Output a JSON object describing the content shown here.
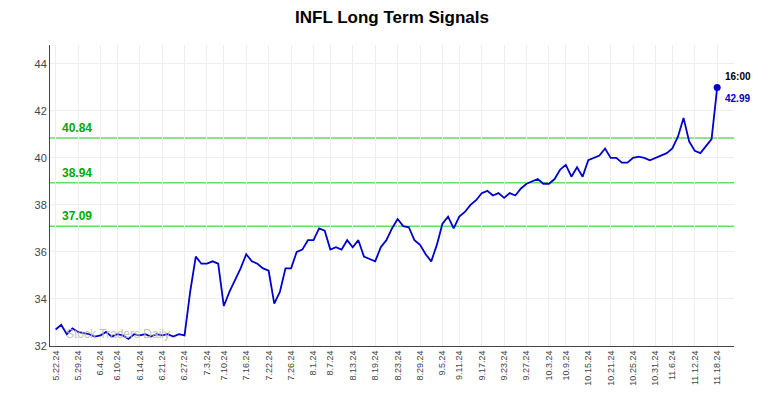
{
  "chart_data": {
    "type": "line",
    "title": "INFL Long Term Signals",
    "categories": [
      "5.22.24",
      null,
      null,
      null,
      "5.29.24",
      null,
      null,
      null,
      "6.4.24",
      null,
      null,
      "6.10.24",
      null,
      null,
      null,
      "6.14.24",
      null,
      null,
      null,
      "6.21.24",
      null,
      null,
      null,
      "6.27.24",
      null,
      null,
      null,
      "7.3.24",
      null,
      null,
      "7.10.24",
      null,
      null,
      null,
      "7.16.24",
      null,
      null,
      null,
      "7.22.24",
      null,
      null,
      null,
      "7.26.24",
      null,
      null,
      null,
      "8.1.24",
      null,
      null,
      "8.7.24",
      null,
      null,
      null,
      "8.13.24",
      null,
      null,
      null,
      "8.19.24",
      null,
      null,
      null,
      "8.23.24",
      null,
      null,
      null,
      "8.29.24",
      null,
      null,
      null,
      "9.5.24",
      null,
      null,
      "9.11.24",
      null,
      null,
      null,
      "9.17.24",
      null,
      null,
      null,
      "9.23.24",
      null,
      null,
      null,
      "9.27.24",
      null,
      null,
      null,
      "10.3.24",
      null,
      null,
      "10.9.24",
      null,
      null,
      null,
      "10.15.24",
      null,
      null,
      null,
      "10.21.24",
      null,
      null,
      null,
      "10.25.24",
      null,
      null,
      null,
      "10.31.24",
      null,
      null,
      "11.6.24",
      null,
      null,
      null,
      "11.12.24",
      null,
      null,
      null,
      "11.18.24"
    ],
    "values": [
      32.7,
      32.9,
      32.5,
      32.75,
      32.6,
      32.55,
      32.5,
      32.4,
      32.45,
      32.6,
      32.4,
      32.5,
      32.45,
      32.3,
      32.5,
      32.45,
      32.5,
      32.4,
      32.5,
      32.45,
      32.5,
      32.4,
      32.5,
      32.45,
      34.3,
      35.8,
      35.5,
      35.5,
      35.6,
      35.5,
      33.7,
      34.3,
      34.8,
      35.3,
      35.9,
      35.6,
      35.5,
      35.3,
      35.2,
      33.8,
      34.3,
      35.3,
      35.3,
      36.0,
      36.1,
      36.5,
      36.5,
      37.0,
      36.9,
      36.1,
      36.2,
      36.1,
      36.5,
      36.2,
      36.5,
      35.8,
      35.7,
      35.6,
      36.2,
      36.5,
      37.0,
      37.4,
      37.1,
      37.05,
      36.5,
      36.3,
      35.9,
      35.6,
      36.3,
      37.2,
      37.5,
      37.0,
      37.5,
      37.7,
      38.0,
      38.2,
      38.5,
      38.6,
      38.4,
      38.5,
      38.3,
      38.5,
      38.4,
      38.7,
      38.9,
      39.0,
      39.1,
      38.9,
      38.9,
      39.1,
      39.5,
      39.7,
      39.2,
      39.6,
      39.2,
      39.9,
      40.0,
      40.1,
      40.4,
      40.0,
      40.0,
      39.8,
      39.8,
      40.0,
      40.05,
      40.0,
      39.9,
      40.0,
      40.1,
      40.2,
      40.4,
      40.9,
      41.7,
      40.7,
      40.3,
      40.2,
      40.5,
      40.8,
      42.99
    ],
    "color": "#0000cc",
    "marker": "none",
    "hlines": [
      {
        "value": 37.09,
        "label": "37.09",
        "color": "#66dd66",
        "label_color": "#00aa00"
      },
      {
        "value": 38.94,
        "label": "38.94",
        "color": "#66dd66",
        "label_color": "#00aa00"
      },
      {
        "value": 40.84,
        "label": "40.84",
        "color": "#66dd66",
        "label_color": "#00aa00"
      }
    ],
    "last_point": {
      "time": "16:00",
      "price": 42.99,
      "color": "#0000cc"
    },
    "watermark": {
      "text": "Stock Traders Daily",
      "color": "#bbbbbb"
    },
    "ylim": [
      32,
      44.8
    ],
    "yticks": [
      32,
      34,
      36,
      38,
      40,
      42,
      44
    ],
    "grid": true
  }
}
